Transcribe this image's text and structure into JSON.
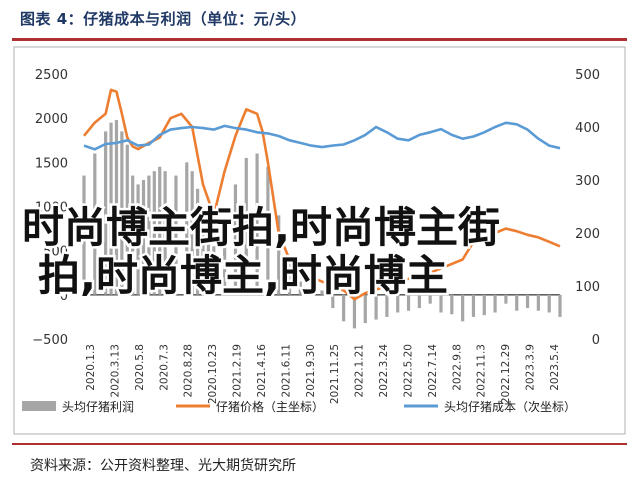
{
  "header": {
    "title": "图表 4：仔猪成本与利润（单位：元/头）"
  },
  "footer": {
    "source": "资料来源：公开资料整理、光大期货研究所"
  },
  "overlay": {
    "line1": "时尚博主街拍,时尚博主街",
    "line2": "拍,时尚博主,时尚博主"
  },
  "colors": {
    "profit_bar": "#a6a6a6",
    "price_line": "#ed7d31",
    "cost_line": "#5b9bd5",
    "title": "#1f3864",
    "rule": "#b03030"
  },
  "chart_data": {
    "type": "bar+line",
    "y_left": {
      "min": -500,
      "max": 2500,
      "ticks": [
        "−500",
        "0",
        "500",
        "1000",
        "1500",
        "2000",
        "2500"
      ],
      "tick_values": [
        -500,
        0,
        500,
        1000,
        1500,
        2000,
        2500
      ]
    },
    "y_right": {
      "min": 0,
      "max": 500,
      "ticks": [
        "0",
        "100",
        "200",
        "300",
        "400",
        "500"
      ],
      "tick_values": [
        0,
        100,
        200,
        300,
        400,
        500
      ]
    },
    "x_tick_labels": [
      "2020.1.3",
      "2020.3.13",
      "2020.5.8",
      "2020.7.3",
      "2020.8.28",
      "2020.10.23",
      "2021.2.19",
      "2021.4.16",
      "2021.6.11",
      "2021.9.30",
      "2021.11.25",
      "2022.1.21",
      "2022.3.24",
      "2022.5.20",
      "2022.7.14",
      "2022.9.8",
      "2022.11.3",
      "2022.12.29",
      "2023.3.9",
      "2023.5.4"
    ],
    "x_index_range": [
      0,
      176
    ],
    "legend": [
      {
        "name": "头均仔猪利润",
        "kind": "bar"
      },
      {
        "name": "仔猪价格（主坐标）",
        "kind": "line"
      },
      {
        "name": "头均仔猪成本（次坐标）",
        "kind": "line"
      }
    ],
    "series": [
      {
        "name": "头均仔猪利润",
        "axis": "left",
        "type": "bar",
        "x": [
          0,
          4,
          8,
          10,
          12,
          14,
          16,
          18,
          20,
          22,
          24,
          26,
          28,
          30,
          34,
          38,
          40,
          42,
          44,
          46,
          48,
          52,
          56,
          60,
          64,
          68,
          72,
          76,
          80,
          84,
          88,
          92,
          96,
          100,
          104,
          108,
          112,
          116,
          120,
          124,
          128,
          132,
          136,
          140,
          144,
          148,
          152,
          156,
          160,
          164,
          168,
          172,
          176
        ],
        "values": [
          1350,
          1600,
          1850,
          1950,
          1980,
          1850,
          1700,
          1350,
          1250,
          1300,
          1350,
          1400,
          1450,
          1400,
          1350,
          1500,
          1400,
          1200,
          900,
          600,
          550,
          600,
          1250,
          1550,
          1600,
          1450,
          900,
          350,
          150,
          100,
          50,
          -150,
          -300,
          -380,
          -320,
          -280,
          -250,
          -200,
          -180,
          -150,
          -100,
          -200,
          -220,
          -300,
          -250,
          -230,
          -200,
          -100,
          -180,
          -150,
          -180,
          -200,
          -250
        ]
      },
      {
        "name": "仔猪价格",
        "axis": "left",
        "type": "line",
        "x": [
          0,
          4,
          8,
          10,
          12,
          14,
          16,
          18,
          20,
          24,
          28,
          32,
          36,
          40,
          44,
          48,
          52,
          56,
          60,
          64,
          66,
          68,
          72,
          76,
          80,
          84,
          88,
          92,
          96,
          100,
          104,
          108,
          112,
          116,
          120,
          124,
          128,
          132,
          136,
          140,
          144,
          148,
          152,
          156,
          160,
          164,
          168,
          172,
          176
        ],
        "values": [
          1800,
          1950,
          2050,
          2320,
          2300,
          2050,
          1780,
          1680,
          1650,
          1720,
          1780,
          2000,
          2050,
          1900,
          1250,
          900,
          1400,
          1800,
          2100,
          2050,
          1850,
          1500,
          700,
          400,
          250,
          200,
          150,
          100,
          50,
          -50,
          20,
          60,
          100,
          150,
          180,
          200,
          250,
          300,
          350,
          400,
          600,
          650,
          700,
          750,
          720,
          680,
          650,
          600,
          550
        ]
      },
      {
        "name": "头均仔猪成本",
        "axis": "right",
        "type": "line",
        "x": [
          0,
          4,
          8,
          12,
          16,
          20,
          24,
          28,
          32,
          36,
          40,
          44,
          48,
          52,
          56,
          60,
          64,
          68,
          72,
          76,
          80,
          84,
          88,
          92,
          96,
          100,
          104,
          108,
          112,
          116,
          120,
          124,
          128,
          132,
          136,
          140,
          144,
          148,
          152,
          156,
          160,
          164,
          168,
          172,
          176
        ],
        "values": [
          365,
          358,
          368,
          370,
          375,
          365,
          367,
          385,
          395,
          398,
          400,
          398,
          395,
          402,
          398,
          395,
          390,
          388,
          383,
          375,
          370,
          365,
          362,
          365,
          367,
          375,
          385,
          400,
          390,
          378,
          375,
          385,
          390,
          396,
          385,
          378,
          382,
          390,
          400,
          408,
          405,
          395,
          378,
          365,
          360
        ]
      }
    ]
  }
}
